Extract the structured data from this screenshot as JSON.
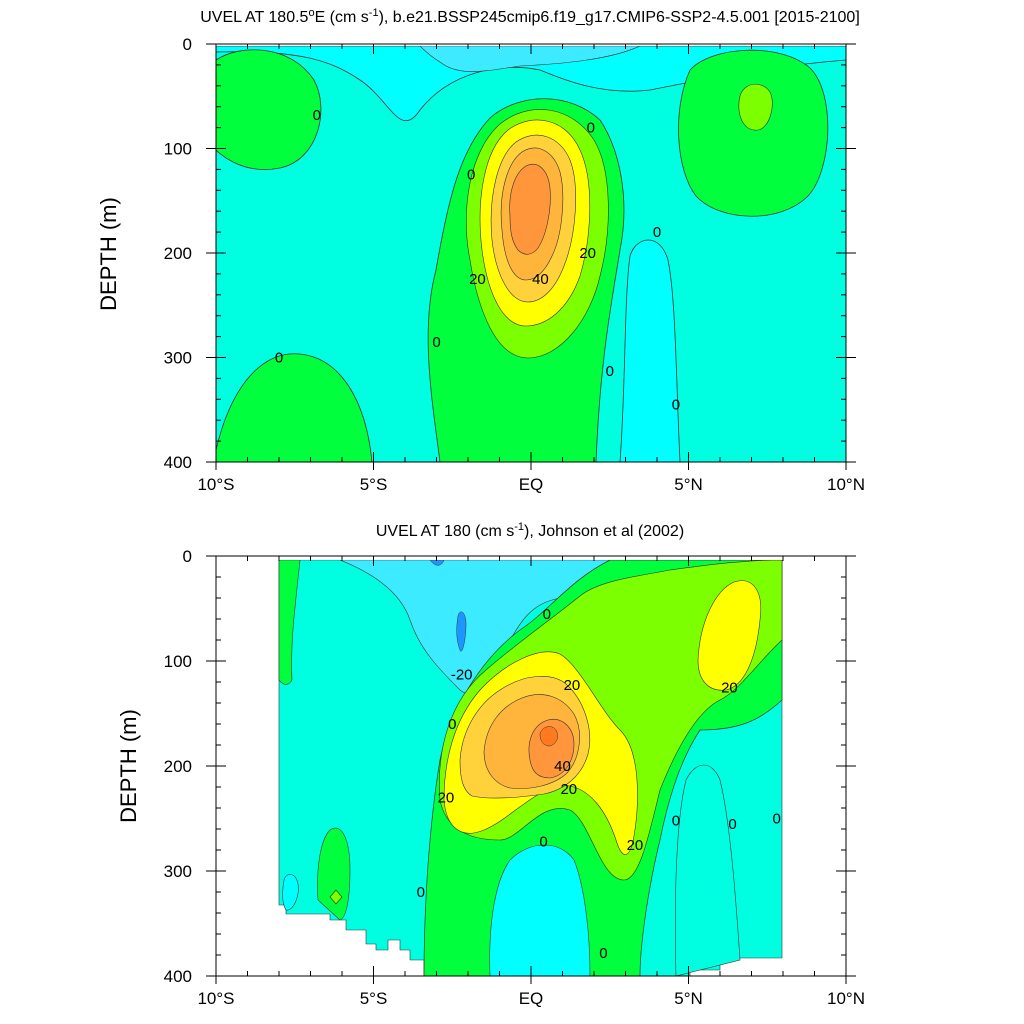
{
  "chart_data": [
    {
      "type": "filled-contour",
      "title": "UVEL AT 180.5ºE (cm s-1), b.e21.BSSP245cmip6.f19_g17.CMIP6-SSP2-4.5.001 [2015-2100]",
      "title_parts": {
        "pre": "UVEL AT 180.5",
        "deg": "o",
        "mid": "E (cm s",
        "sup": "-1",
        "post": "), b.e21.BSSP245cmip6.f19_g17.CMIP6-SSP2-4.5.001 [2015-2100]"
      },
      "xlabel": "",
      "ylabel": "DEPTH (m)",
      "xlim": [
        -10,
        10
      ],
      "ylim": [
        400,
        0
      ],
      "x_ticks": [
        {
          "value": -10,
          "label": "10°S"
        },
        {
          "value": -5,
          "label": "5°S"
        },
        {
          "value": 0,
          "label": "EQ"
        },
        {
          "value": 5,
          "label": "5°N"
        },
        {
          "value": 10,
          "label": "10°N"
        }
      ],
      "y_ticks": [
        {
          "value": 0,
          "label": "0"
        },
        {
          "value": 100,
          "label": "100"
        },
        {
          "value": 200,
          "label": "200"
        },
        {
          "value": 300,
          "label": "300"
        },
        {
          "value": 400,
          "label": "400"
        }
      ],
      "contour_labels": [
        {
          "x": -6.8,
          "y": 68,
          "text": "0"
        },
        {
          "x": 1.9,
          "y": 80,
          "text": "0"
        },
        {
          "x": -1.9,
          "y": 125,
          "text": "0"
        },
        {
          "x": 4.0,
          "y": 180,
          "text": "0"
        },
        {
          "x": -1.7,
          "y": 225,
          "text": "20"
        },
        {
          "x": 1.8,
          "y": 200,
          "text": "20"
        },
        {
          "x": 0.3,
          "y": 225,
          "text": "40"
        },
        {
          "x": -8.0,
          "y": 300,
          "text": "0"
        },
        {
          "x": -3.0,
          "y": 285,
          "text": "0"
        },
        {
          "x": 2.5,
          "y": 313,
          "text": "0"
        },
        {
          "x": 4.6,
          "y": 345,
          "text": "0"
        }
      ]
    },
    {
      "type": "filled-contour",
      "title": "UVEL AT 180 (cm s-1), Johnson et al (2002)",
      "title_parts": {
        "pre": "UVEL AT 180 (cm s",
        "sup": "-1",
        "post": "), Johnson et al (2002)"
      },
      "xlabel": "",
      "ylabel": "DEPTH (m)",
      "xlim": [
        -10,
        10
      ],
      "ylim": [
        400,
        0
      ],
      "x_ticks": [
        {
          "value": -10,
          "label": "10°S"
        },
        {
          "value": -5,
          "label": "5°S"
        },
        {
          "value": 0,
          "label": "EQ"
        },
        {
          "value": 5,
          "label": "5°N"
        },
        {
          "value": 10,
          "label": "10°N"
        }
      ],
      "y_ticks": [
        {
          "value": 0,
          "label": "0"
        },
        {
          "value": 100,
          "label": "100"
        },
        {
          "value": 200,
          "label": "200"
        },
        {
          "value": 300,
          "label": "300"
        },
        {
          "value": 400,
          "label": "400"
        }
      ],
      "contour_labels": [
        {
          "x": 0.5,
          "y": 55,
          "text": "0"
        },
        {
          "x": -2.2,
          "y": 113,
          "text": "-20"
        },
        {
          "x": 1.3,
          "y": 123,
          "text": "20"
        },
        {
          "x": 6.3,
          "y": 125,
          "text": "20"
        },
        {
          "x": -2.5,
          "y": 160,
          "text": "0"
        },
        {
          "x": 1.0,
          "y": 200,
          "text": "40"
        },
        {
          "x": 1.2,
          "y": 222,
          "text": "20"
        },
        {
          "x": -2.7,
          "y": 230,
          "text": "20"
        },
        {
          "x": 4.6,
          "y": 252,
          "text": "0"
        },
        {
          "x": 6.4,
          "y": 255,
          "text": "0"
        },
        {
          "x": 7.8,
          "y": 250,
          "text": "0"
        },
        {
          "x": 3.3,
          "y": 275,
          "text": "20"
        },
        {
          "x": 0.4,
          "y": 272,
          "text": "0"
        },
        {
          "x": -3.5,
          "y": 320,
          "text": "0"
        },
        {
          "x": 2.3,
          "y": 378,
          "text": "0"
        }
      ]
    }
  ],
  "colors": {
    "cyan_light": "#00FFE0",
    "cyan": "#00FFFF",
    "sky": "#3CEBFF",
    "blue": "#1E96FF",
    "green": "#00FF3C",
    "green_light": "#7CFF00",
    "yellow": "#FFFF00",
    "gold": "#FFD23C",
    "orange_light": "#FFB43C",
    "orange": "#FF963C",
    "line": "#333333"
  }
}
